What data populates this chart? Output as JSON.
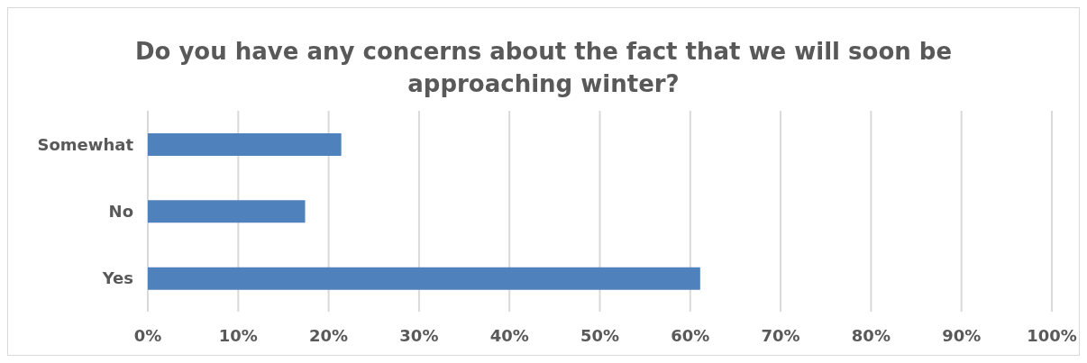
{
  "chart_data": {
    "type": "bar",
    "orientation": "horizontal",
    "title": "Do you have any concerns about the fact that we will soon be approaching winter?",
    "categories": [
      "Somewhat",
      "No",
      "Yes"
    ],
    "values": [
      0.214,
      0.174,
      0.611
    ],
    "color": "#4f81bd",
    "xlim": [
      0,
      1
    ],
    "xticks": [
      {
        "value": 0,
        "label": "0%"
      },
      {
        "value": 0.1,
        "label": "10%"
      },
      {
        "value": 0.2,
        "label": "20%"
      },
      {
        "value": 0.3,
        "label": "30%"
      },
      {
        "value": 0.4,
        "label": "40%"
      },
      {
        "value": 0.5,
        "label": "50%"
      },
      {
        "value": 0.6,
        "label": "60%"
      },
      {
        "value": 0.7,
        "label": "70%"
      },
      {
        "value": 0.8,
        "label": "80%"
      },
      {
        "value": 0.9,
        "label": "90%"
      },
      {
        "value": 1,
        "label": "100%"
      }
    ],
    "grid": "x",
    "legend": false
  }
}
